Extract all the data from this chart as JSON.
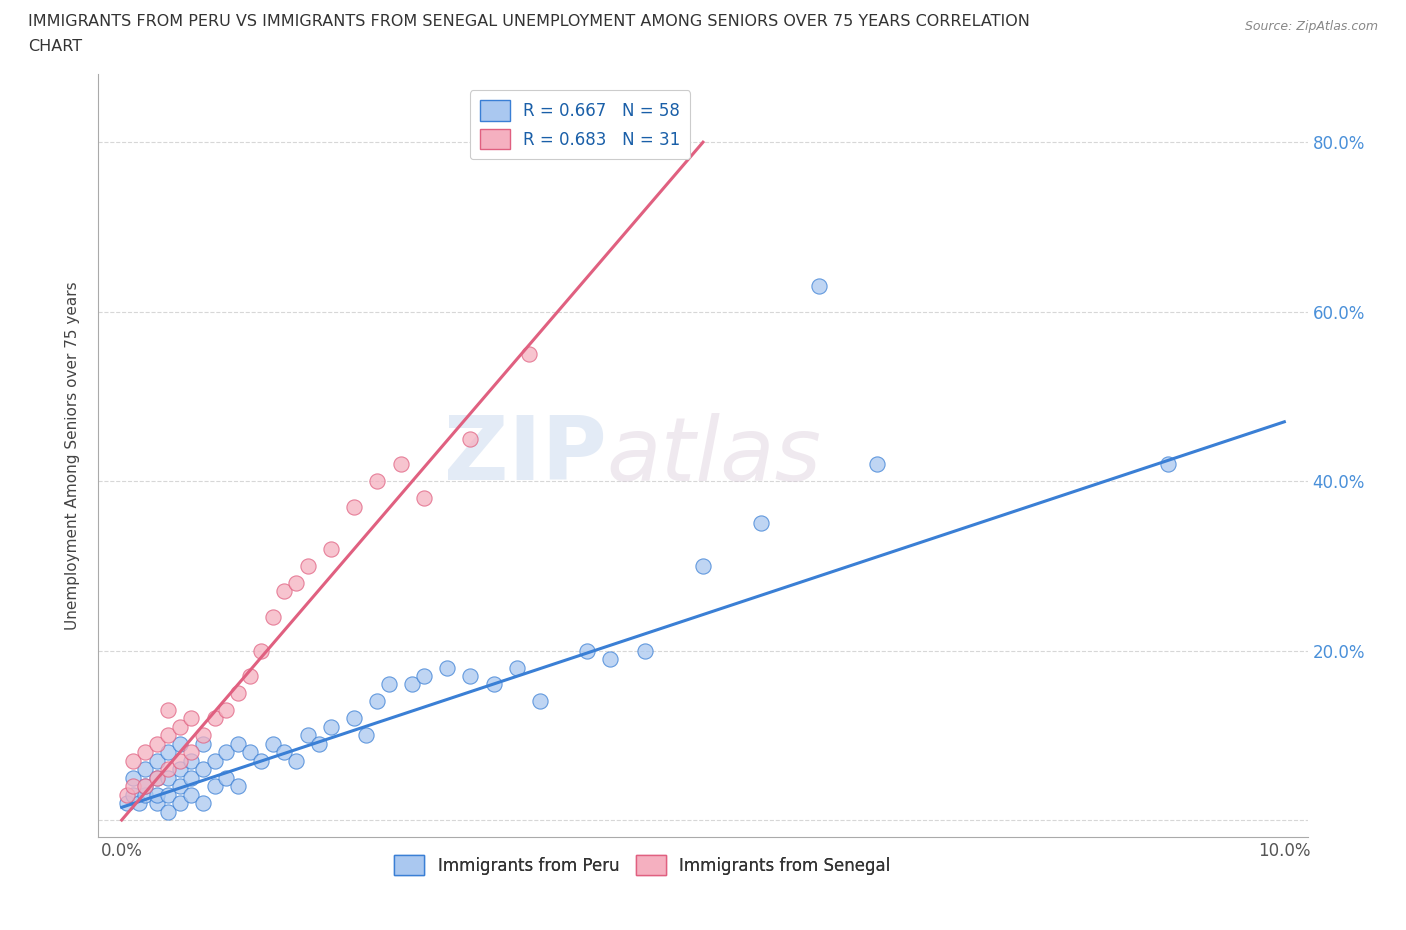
{
  "title_line1": "IMMIGRANTS FROM PERU VS IMMIGRANTS FROM SENEGAL UNEMPLOYMENT AMONG SENIORS OVER 75 YEARS CORRELATION",
  "title_line2": "CHART",
  "source": "Source: ZipAtlas.com",
  "ylabel": "Unemployment Among Seniors over 75 years",
  "xlim": [
    -0.002,
    0.102
  ],
  "ylim": [
    -0.02,
    0.88
  ],
  "xticks": [
    0.0,
    0.02,
    0.04,
    0.06,
    0.08,
    0.1
  ],
  "xtick_labels": [
    "0.0%",
    "",
    "",
    "",
    "",
    "10.0%"
  ],
  "yticks": [
    0.0,
    0.2,
    0.4,
    0.6,
    0.8
  ],
  "ytick_labels_right": [
    "",
    "20.0%",
    "40.0%",
    "60.0%",
    "80.0%"
  ],
  "peru_color": "#aac8f0",
  "senegal_color": "#f5b0c0",
  "peru_line_color": "#3a7fd5",
  "senegal_line_color": "#e06080",
  "peru_R": 0.667,
  "peru_N": 58,
  "senegal_R": 0.683,
  "senegal_N": 31,
  "watermark_zip": "ZIP",
  "watermark_atlas": "atlas",
  "peru_scatter_x": [
    0.0005,
    0.001,
    0.001,
    0.0015,
    0.002,
    0.002,
    0.002,
    0.003,
    0.003,
    0.003,
    0.003,
    0.004,
    0.004,
    0.004,
    0.004,
    0.005,
    0.005,
    0.005,
    0.005,
    0.006,
    0.006,
    0.006,
    0.007,
    0.007,
    0.007,
    0.008,
    0.008,
    0.009,
    0.009,
    0.01,
    0.01,
    0.011,
    0.012,
    0.013,
    0.014,
    0.015,
    0.016,
    0.017,
    0.018,
    0.02,
    0.021,
    0.022,
    0.023,
    0.025,
    0.026,
    0.028,
    0.03,
    0.032,
    0.034,
    0.036,
    0.04,
    0.042,
    0.045,
    0.05,
    0.055,
    0.06,
    0.065,
    0.09
  ],
  "peru_scatter_y": [
    0.02,
    0.03,
    0.05,
    0.02,
    0.03,
    0.04,
    0.06,
    0.02,
    0.03,
    0.05,
    0.07,
    0.01,
    0.03,
    0.05,
    0.08,
    0.02,
    0.04,
    0.06,
    0.09,
    0.03,
    0.05,
    0.07,
    0.02,
    0.06,
    0.09,
    0.04,
    0.07,
    0.05,
    0.08,
    0.04,
    0.09,
    0.08,
    0.07,
    0.09,
    0.08,
    0.07,
    0.1,
    0.09,
    0.11,
    0.12,
    0.1,
    0.14,
    0.16,
    0.16,
    0.17,
    0.18,
    0.17,
    0.16,
    0.18,
    0.14,
    0.2,
    0.19,
    0.2,
    0.3,
    0.35,
    0.63,
    0.42,
    0.42
  ],
  "senegal_scatter_x": [
    0.0005,
    0.001,
    0.001,
    0.002,
    0.002,
    0.003,
    0.003,
    0.004,
    0.004,
    0.004,
    0.005,
    0.005,
    0.006,
    0.006,
    0.007,
    0.008,
    0.009,
    0.01,
    0.011,
    0.012,
    0.013,
    0.014,
    0.015,
    0.016,
    0.018,
    0.02,
    0.022,
    0.024,
    0.026,
    0.03,
    0.035
  ],
  "senegal_scatter_y": [
    0.03,
    0.04,
    0.07,
    0.04,
    0.08,
    0.05,
    0.09,
    0.06,
    0.1,
    0.13,
    0.07,
    0.11,
    0.08,
    0.12,
    0.1,
    0.12,
    0.13,
    0.15,
    0.17,
    0.2,
    0.24,
    0.27,
    0.28,
    0.3,
    0.32,
    0.37,
    0.4,
    0.42,
    0.38,
    0.45,
    0.55
  ],
  "peru_line_x0": 0.0,
  "peru_line_y0": 0.015,
  "peru_line_x1": 0.1,
  "peru_line_y1": 0.47,
  "senegal_line_x0": 0.0,
  "senegal_line_y0": 0.0,
  "senegal_line_x1": 0.05,
  "senegal_line_y1": 0.8
}
